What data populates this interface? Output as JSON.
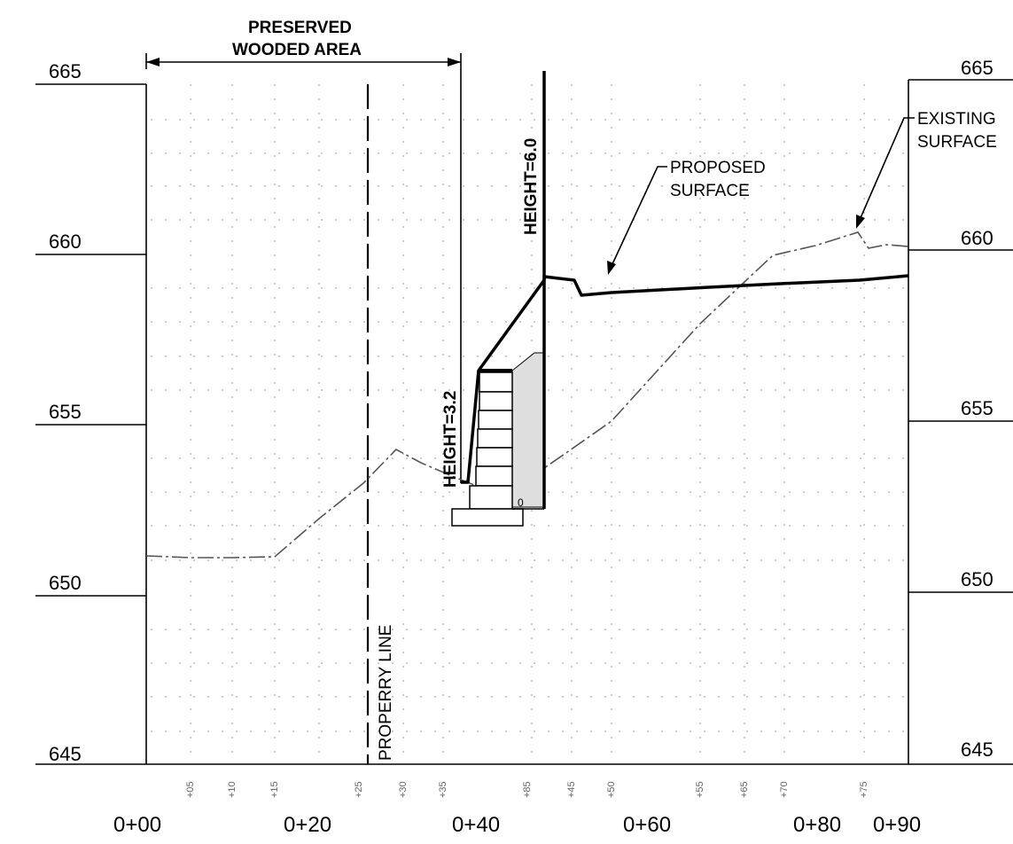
{
  "elevation_labels": [
    "665",
    "660",
    "655",
    "650",
    "645"
  ],
  "station_labels": [
    "0+00",
    "0+20",
    "0+40",
    "0+60",
    "0+80",
    "0+90"
  ],
  "minor_station_labels": [
    "+05",
    "+10",
    "+15",
    "+25",
    "+30",
    "+35",
    "+45",
    "+50",
    "+55",
    "+65",
    "+70",
    "+75",
    "+85"
  ],
  "annotations": {
    "preserved_area": [
      "PRESERVED",
      "WOODED AREA"
    ],
    "height_upper": "HEIGHT=6.0",
    "height_lower": "HEIGHT=3.2",
    "proposed_surface": [
      "PROPOSED",
      "SURFACE"
    ],
    "existing_surface": [
      "EXISTING",
      "SURFACE"
    ],
    "property_line": "PROPERRY LINE",
    "small_mark": "0"
  },
  "colors": {
    "line": "#000000",
    "existing_surface": "#555555",
    "grid": "#9a9a9a",
    "fill": "#cfcfcf"
  }
}
